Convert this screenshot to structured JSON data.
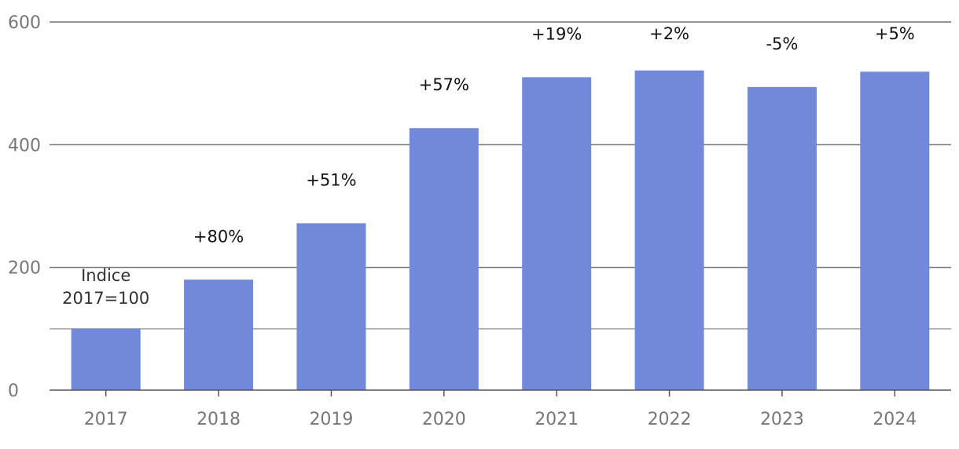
{
  "chart_data": {
    "type": "bar",
    "categories": [
      "2017",
      "2018",
      "2019",
      "2020",
      "2021",
      "2022",
      "2023",
      "2024"
    ],
    "values": [
      100,
      180,
      272,
      427,
      510,
      521,
      494,
      519
    ],
    "data_labels": [
      "",
      "+80%",
      "+51%",
      "+57%",
      "+19%",
      "+2%",
      "-5%",
      "+5%"
    ],
    "annotation": {
      "category": "2017",
      "lines": [
        "Indice",
        "2017=100"
      ]
    },
    "reference_line": 100,
    "ylim": [
      0,
      600
    ],
    "yticks": [
      0,
      200,
      400,
      600
    ],
    "grid": true,
    "legend": "none",
    "title": "",
    "xlabel": "",
    "ylabel": "",
    "colors": {
      "bar": "#7189d8",
      "grid": "#707070",
      "reference": "#a0a0a0",
      "axis": "#555555",
      "tick_text": "#777777"
    }
  }
}
